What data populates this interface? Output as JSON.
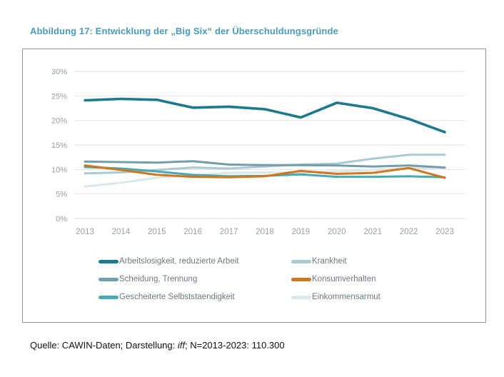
{
  "figure": {
    "title": "Abbildung 17: Entwicklung der „Big Six“ der Überschuldungsgründe"
  },
  "source": {
    "prefix": "Quelle: CAWIN-Daten; Darstellung: ",
    "italic": "iff",
    "suffix": "; N=2013-2023: 110.300"
  },
  "chart_data": {
    "type": "line",
    "title": "Entwicklung der „Big Six“ der Überschuldungsgründe",
    "x": [
      2013,
      2014,
      2015,
      2016,
      2017,
      2018,
      2019,
      2020,
      2021,
      2022,
      2023
    ],
    "ylim": [
      0,
      30
    ],
    "yticks": [
      0,
      5,
      10,
      15,
      20,
      25,
      30
    ],
    "ytick_suffix": "%",
    "grid": true,
    "legend_position": "bottom",
    "grid_color": "#e2e2e2",
    "axis_label_color": "#9aa0a6",
    "series": [
      {
        "key": "arbeitslosigkeit",
        "name": "Arbeitslosigkeit, reduzierte Arbeit",
        "color": "#1c7a8e",
        "width": 3.6,
        "z": 5,
        "values": [
          24.1,
          24.4,
          24.2,
          22.6,
          22.8,
          22.3,
          20.6,
          23.6,
          22.5,
          20.3,
          17.6
        ]
      },
      {
        "key": "krankheit",
        "name": "Krankheit",
        "color": "#aac9d4",
        "width": 3,
        "z": 1,
        "values": [
          9.2,
          9.4,
          9.9,
          10.4,
          10.2,
          10.6,
          11.0,
          11.2,
          12.2,
          13.0,
          13.0
        ]
      },
      {
        "key": "scheidung-trennung",
        "name": "Scheidung, Trennung",
        "color": "#729eac",
        "width": 3,
        "z": 2,
        "values": [
          11.6,
          11.5,
          11.4,
          11.7,
          11.0,
          10.9,
          10.9,
          10.8,
          10.6,
          10.8,
          10.4
        ]
      },
      {
        "key": "konsumverhalten",
        "name": "Konsumverhalten",
        "color": "#d1761d",
        "width": 3,
        "z": 4,
        "values": [
          10.8,
          9.9,
          8.9,
          8.5,
          8.4,
          8.6,
          9.7,
          9.1,
          9.3,
          10.3,
          8.3
        ]
      },
      {
        "key": "gescheiterte-selbststaendigkeit",
        "name": "Gescheiterte Selbststaendigkeit",
        "color": "#45aab6",
        "width": 3,
        "z": 3,
        "values": [
          10.5,
          10.2,
          9.6,
          8.9,
          8.6,
          8.7,
          9.0,
          8.5,
          8.5,
          8.6,
          8.4
        ]
      },
      {
        "key": "einkommensarmut",
        "name": "Einkommensarmut",
        "color": "#dde7ea",
        "width": 3,
        "z": 0,
        "values": [
          6.5,
          7.3,
          8.3,
          8.8,
          9.3,
          9.4,
          9.4,
          9.6,
          9.9,
          10.3,
          10.2
        ]
      }
    ]
  }
}
